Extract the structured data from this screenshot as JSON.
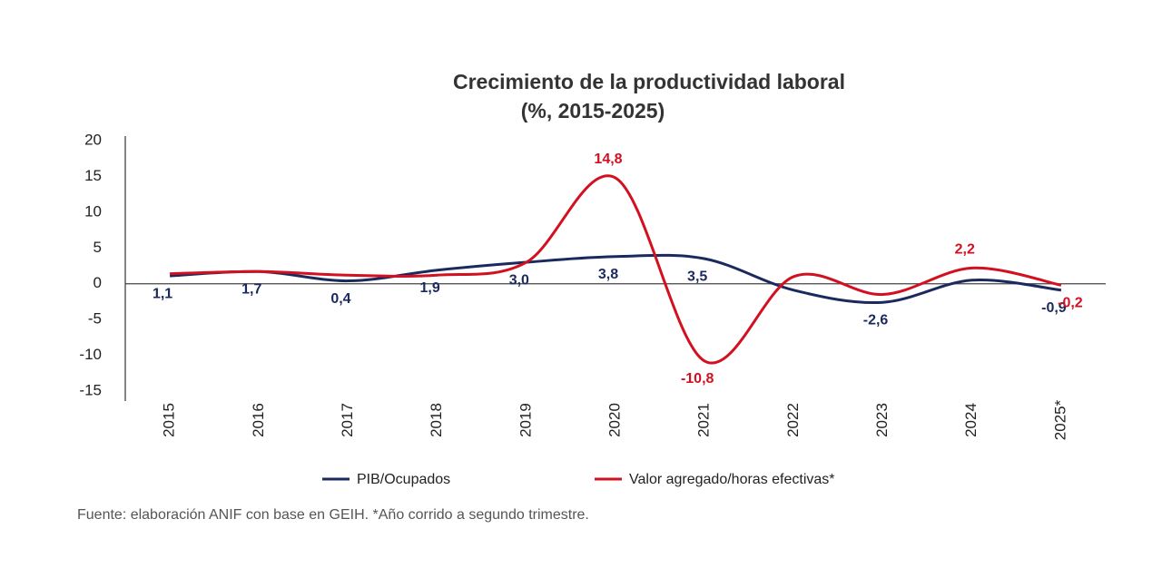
{
  "chart_data": {
    "type": "line",
    "title": "Crecimiento de la productividad laboral",
    "subtitle": "(%, 2015-2025)",
    "categories": [
      "2015",
      "2016",
      "2017",
      "2018",
      "2019",
      "2020",
      "2021",
      "2022",
      "2023",
      "2024",
      "2025*"
    ],
    "series": [
      {
        "name": "PIB/Ocupados",
        "color": "#1b2a5e",
        "values": [
          1.1,
          1.7,
          0.4,
          1.9,
          3.0,
          3.8,
          3.5,
          -0.9,
          -2.6,
          0.5,
          -0.9
        ],
        "value_labels": [
          "1,1",
          "1,7",
          "0,4",
          "1,9",
          "3,0",
          "3,8",
          "3,5",
          null,
          "-2,6",
          null,
          "-0,9"
        ]
      },
      {
        "name": "Valor agregado/horas efectivas*",
        "color": "#d2101f",
        "values": [
          1.4,
          1.7,
          1.2,
          1.2,
          3.0,
          14.8,
          -10.8,
          1.0,
          -1.5,
          2.2,
          -0.2
        ],
        "value_labels": [
          null,
          null,
          null,
          null,
          null,
          "14,8",
          "-10,8",
          null,
          null,
          "2,2",
          "-0,2"
        ]
      }
    ],
    "ylim": [
      -15,
      20
    ],
    "yticks": [
      -15,
      -10,
      -5,
      0,
      5,
      10,
      15,
      20
    ],
    "grid": false,
    "source": "Fuente: elaboración ANIF con base en GEIH. *Año corrido a segundo trimestre."
  }
}
